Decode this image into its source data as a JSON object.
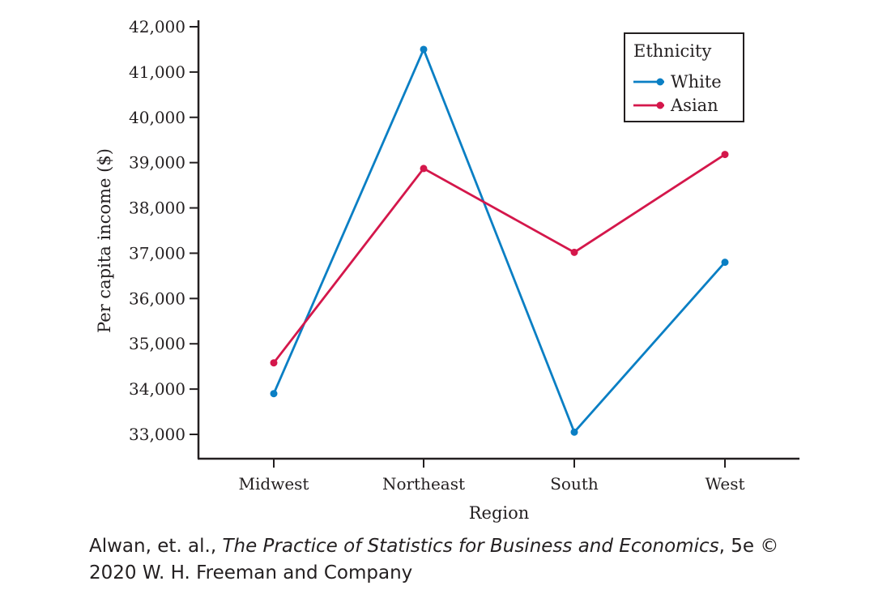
{
  "chart_data": {
    "type": "line",
    "categories": [
      "Midwest",
      "Northeast",
      "South",
      "West"
    ],
    "xlabel": "Region",
    "ylabel": "Per capita income ($)",
    "ylim": [
      32500,
      42000
    ],
    "yticks": [
      33000,
      34000,
      35000,
      36000,
      37000,
      38000,
      39000,
      40000,
      41000,
      42000
    ],
    "ytick_labels": [
      "33,000",
      "34,000",
      "35,000",
      "36,000",
      "37,000",
      "38,000",
      "39,000",
      "40,000",
      "41,000",
      "42,000"
    ],
    "legend": {
      "title": "Ethnicity",
      "position": "top-right"
    },
    "series": [
      {
        "name": "White",
        "color": "#0a7fc4",
        "values": [
          33900,
          41500,
          33050,
          36800
        ]
      },
      {
        "name": "Asian",
        "color": "#d4174b",
        "values": [
          34580,
          38870,
          37020,
          39180
        ]
      }
    ]
  },
  "caption": {
    "author": "Alwan, et. al., ",
    "title": "The Practice of Statistics for Business and Economics",
    "tail": ", 5e © 2020 W. H. Freeman and Company"
  }
}
